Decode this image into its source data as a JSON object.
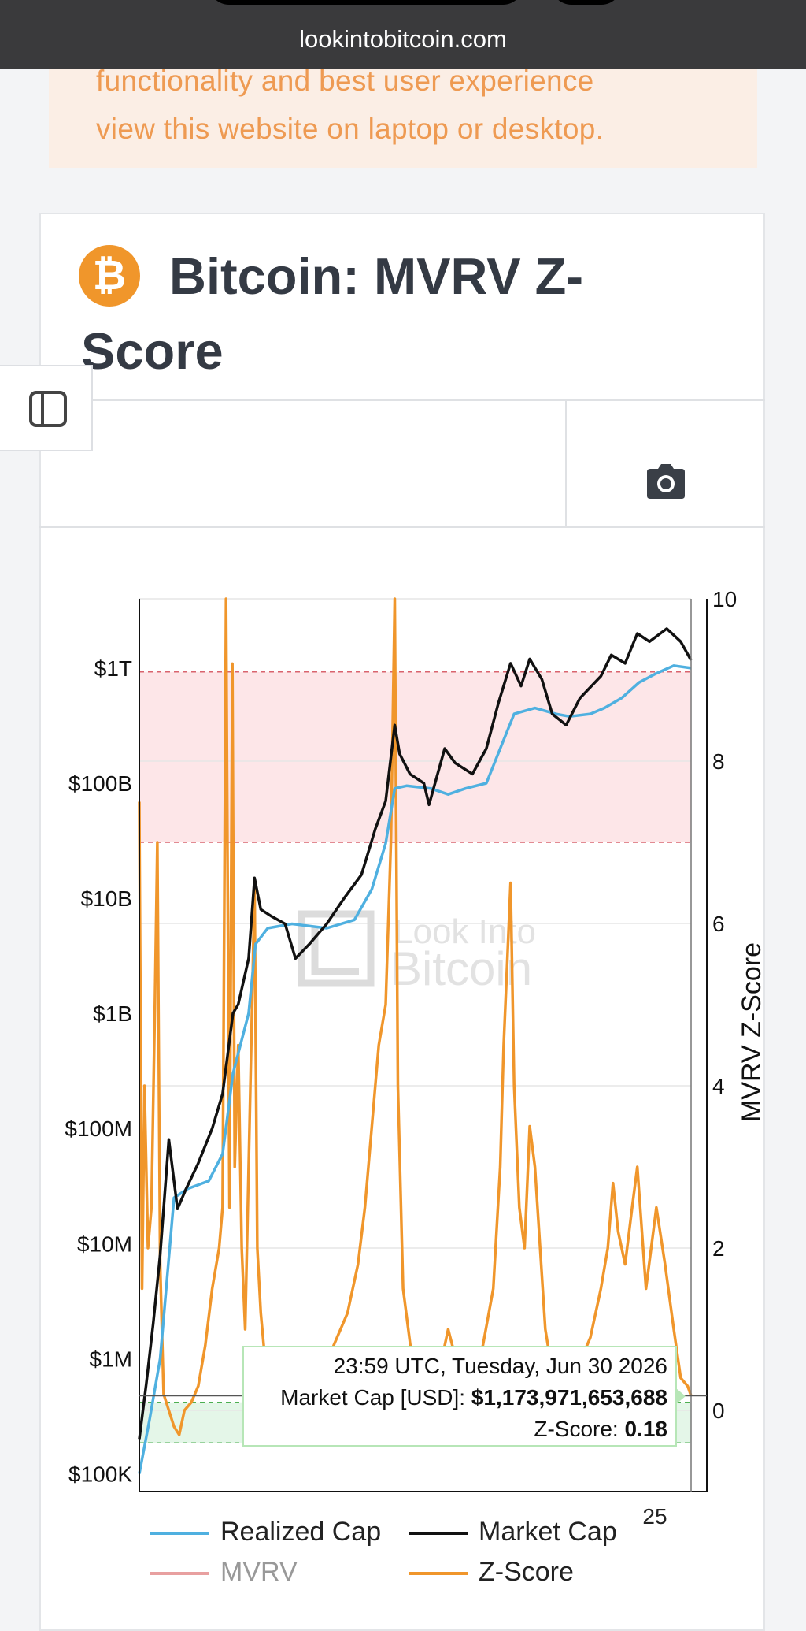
{
  "browser": {
    "url": "lookintobitcoin.com"
  },
  "banner": {
    "line1": "functionality and best user experience",
    "line2": "view this website on laptop or desktop."
  },
  "header": {
    "logo_symbol": "₿",
    "title_line1": "Bitcoin: MVRV Z-",
    "title_line2": "Score"
  },
  "icons": {
    "sidebar": "sidebar-toggle-icon",
    "camera": "camera-icon"
  },
  "watermark": {
    "line1": "Look Into",
    "line2": "Bitcoin"
  },
  "colors": {
    "realized_cap": "#4fb0e0",
    "market_cap": "#111111",
    "mvrv": "#e8a0a0",
    "z_score": "#f0962b",
    "top_band": "#fde6e8",
    "bottom_band": "#e4f6e8"
  },
  "tooltip": {
    "timestamp": "23:59 UTC, Tuesday, Jun 30 2026",
    "market_cap_label": "Market Cap [USD]:",
    "market_cap_value": "$1,173,971,653,688",
    "z_score_label": "Z-Score:",
    "z_score_value": "0.18"
  },
  "chart_data": {
    "type": "line",
    "title": "",
    "ylabel_left": "",
    "ylabel_right": "MVRV Z-Score",
    "y_left_scale": "log",
    "y_left_ticks": [
      "$100K",
      "$1M",
      "$10M",
      "$100M",
      "$1B",
      "$10B",
      "$100B",
      "$1T"
    ],
    "y_left_range": [
      70000,
      4000000000000
    ],
    "y_right_ticks": [
      "0",
      "2",
      "4",
      "6",
      "8",
      "10"
    ],
    "y_right_range": [
      -1,
      10
    ],
    "x_visible_tick": "25",
    "x_range": [
      2010.6,
      2026.5
    ],
    "legend": [
      "Realized Cap",
      "Market Cap",
      "MVRV",
      "Z-Score"
    ],
    "legend_position": "bottom",
    "bands": [
      {
        "axis": "right",
        "from": 7,
        "to": 9.1,
        "color": "#fde6e8"
      },
      {
        "axis": "right",
        "from": -0.4,
        "to": 0.1,
        "color": "#e4f6e8"
      }
    ],
    "series": [
      {
        "name": "Market Cap",
        "x": [
          2010.6,
          2010.8,
          2011.0,
          2011.2,
          2011.45,
          2011.7,
          2011.95,
          2012.3,
          2012.7,
          2013.0,
          2013.3,
          2013.45,
          2013.75,
          2013.92,
          2014.1,
          2014.4,
          2014.8,
          2015.1,
          2015.5,
          2016.0,
          2016.5,
          2017.0,
          2017.4,
          2017.7,
          2017.96,
          2018.1,
          2018.4,
          2018.8,
          2018.95,
          2019.4,
          2019.7,
          2020.2,
          2020.6,
          2020.95,
          2021.3,
          2021.6,
          2021.85,
          2022.2,
          2022.5,
          2022.9,
          2023.3,
          2023.9,
          2024.2,
          2024.6,
          2024.95,
          2025.3,
          2025.8,
          2026.2,
          2026.5
        ],
        "values": [
          200000,
          600000,
          2000000,
          8000000,
          80000000,
          20000000,
          30000000,
          50000000,
          100000000,
          200000000,
          1000000000,
          1200000000,
          3000000000,
          15000000000,
          8000000000,
          7000000000,
          6000000000,
          3000000000,
          4000000000,
          6000000000,
          10000000000,
          16000000000,
          40000000000,
          70000000000,
          320000000000,
          180000000000,
          120000000000,
          100000000000,
          65000000000,
          200000000000,
          150000000000,
          120000000000,
          200000000000,
          500000000000,
          1100000000000,
          700000000000,
          1200000000000,
          800000000000,
          400000000000,
          320000000000,
          550000000000,
          850000000000,
          1300000000000,
          1100000000000,
          2000000000000,
          1700000000000,
          2200000000000,
          1700000000000,
          1170000000000
        ]
      },
      {
        "name": "Realized Cap",
        "x": [
          2010.6,
          2010.9,
          2011.2,
          2011.6,
          2012.0,
          2012.6,
          2013.0,
          2013.3,
          2013.75,
          2013.95,
          2014.3,
          2015.0,
          2016.0,
          2016.8,
          2017.3,
          2017.7,
          2017.96,
          2018.3,
          2019.0,
          2019.5,
          2020.0,
          2020.6,
          2021.0,
          2021.4,
          2022.0,
          2022.6,
          2023.0,
          2023.6,
          2024.0,
          2024.5,
          2025.0,
          2025.5,
          2026.0,
          2026.5
        ],
        "values": [
          100000,
          300000,
          1000000,
          25000000,
          30000000,
          35000000,
          60000000,
          300000000,
          1000000000,
          4000000000,
          5500000000,
          6000000000,
          5500000000,
          6500000000,
          12000000000,
          30000000000,
          90000000000,
          95000000000,
          90000000000,
          80000000000,
          90000000000,
          100000000000,
          200000000000,
          400000000000,
          450000000000,
          400000000000,
          380000000000,
          400000000000,
          450000000000,
          550000000000,
          750000000000,
          900000000000,
          1050000000000,
          1000000000000
        ]
      },
      {
        "name": "Z-Score",
        "x": [
          2010.6,
          2010.68,
          2010.75,
          2010.85,
          2010.95,
          2011.05,
          2011.12,
          2011.2,
          2011.3,
          2011.45,
          2011.6,
          2011.75,
          2011.9,
          2012.1,
          2012.3,
          2012.5,
          2012.7,
          2012.9,
          2013.0,
          2013.1,
          2013.2,
          2013.28,
          2013.35,
          2013.45,
          2013.55,
          2013.65,
          2013.75,
          2013.85,
          2013.92,
          2014.0,
          2014.1,
          2014.25,
          2014.5,
          2014.8,
          2015.0,
          2015.2,
          2015.5,
          2015.9,
          2016.2,
          2016.6,
          2016.9,
          2017.1,
          2017.3,
          2017.5,
          2017.7,
          2017.85,
          2017.96,
          2018.05,
          2018.2,
          2018.5,
          2018.9,
          2019.1,
          2019.3,
          2019.5,
          2019.8,
          2020.0,
          2020.2,
          2020.5,
          2020.8,
          2021.0,
          2021.1,
          2021.2,
          2021.3,
          2021.4,
          2021.55,
          2021.7,
          2021.85,
          2022.0,
          2022.3,
          2022.6,
          2022.9,
          2023.2,
          2023.6,
          2023.9,
          2024.1,
          2024.25,
          2024.4,
          2024.6,
          2024.8,
          2024.95,
          2025.2,
          2025.5,
          2025.75,
          2026.0,
          2026.2,
          2026.4,
          2026.5
        ],
        "values": [
          7.5,
          1.5,
          4.0,
          2.0,
          2.5,
          5.0,
          7.0,
          1.8,
          0.2,
          0.0,
          -0.2,
          -0.3,
          0.0,
          0.1,
          0.3,
          0.8,
          1.5,
          2.0,
          2.5,
          10.0,
          2.5,
          9.2,
          3.0,
          4.5,
          2.0,
          1.0,
          3.0,
          5.0,
          6.5,
          2.0,
          1.2,
          0.5,
          0.1,
          -0.3,
          -0.2,
          0.1,
          0.2,
          0.4,
          0.8,
          1.2,
          1.8,
          2.5,
          3.5,
          4.5,
          5.0,
          7.0,
          10.0,
          4.0,
          1.5,
          0.5,
          -0.2,
          0.0,
          0.6,
          1.0,
          0.5,
          0.3,
          0.4,
          0.8,
          1.5,
          3.0,
          4.5,
          5.5,
          6.5,
          4.0,
          2.5,
          2.0,
          3.5,
          3.0,
          1.0,
          0.2,
          -0.3,
          0.5,
          0.9,
          1.5,
          2.0,
          2.8,
          2.2,
          1.8,
          2.5,
          3.0,
          1.5,
          2.5,
          1.8,
          1.0,
          0.4,
          0.3,
          0.18
        ]
      }
    ]
  }
}
